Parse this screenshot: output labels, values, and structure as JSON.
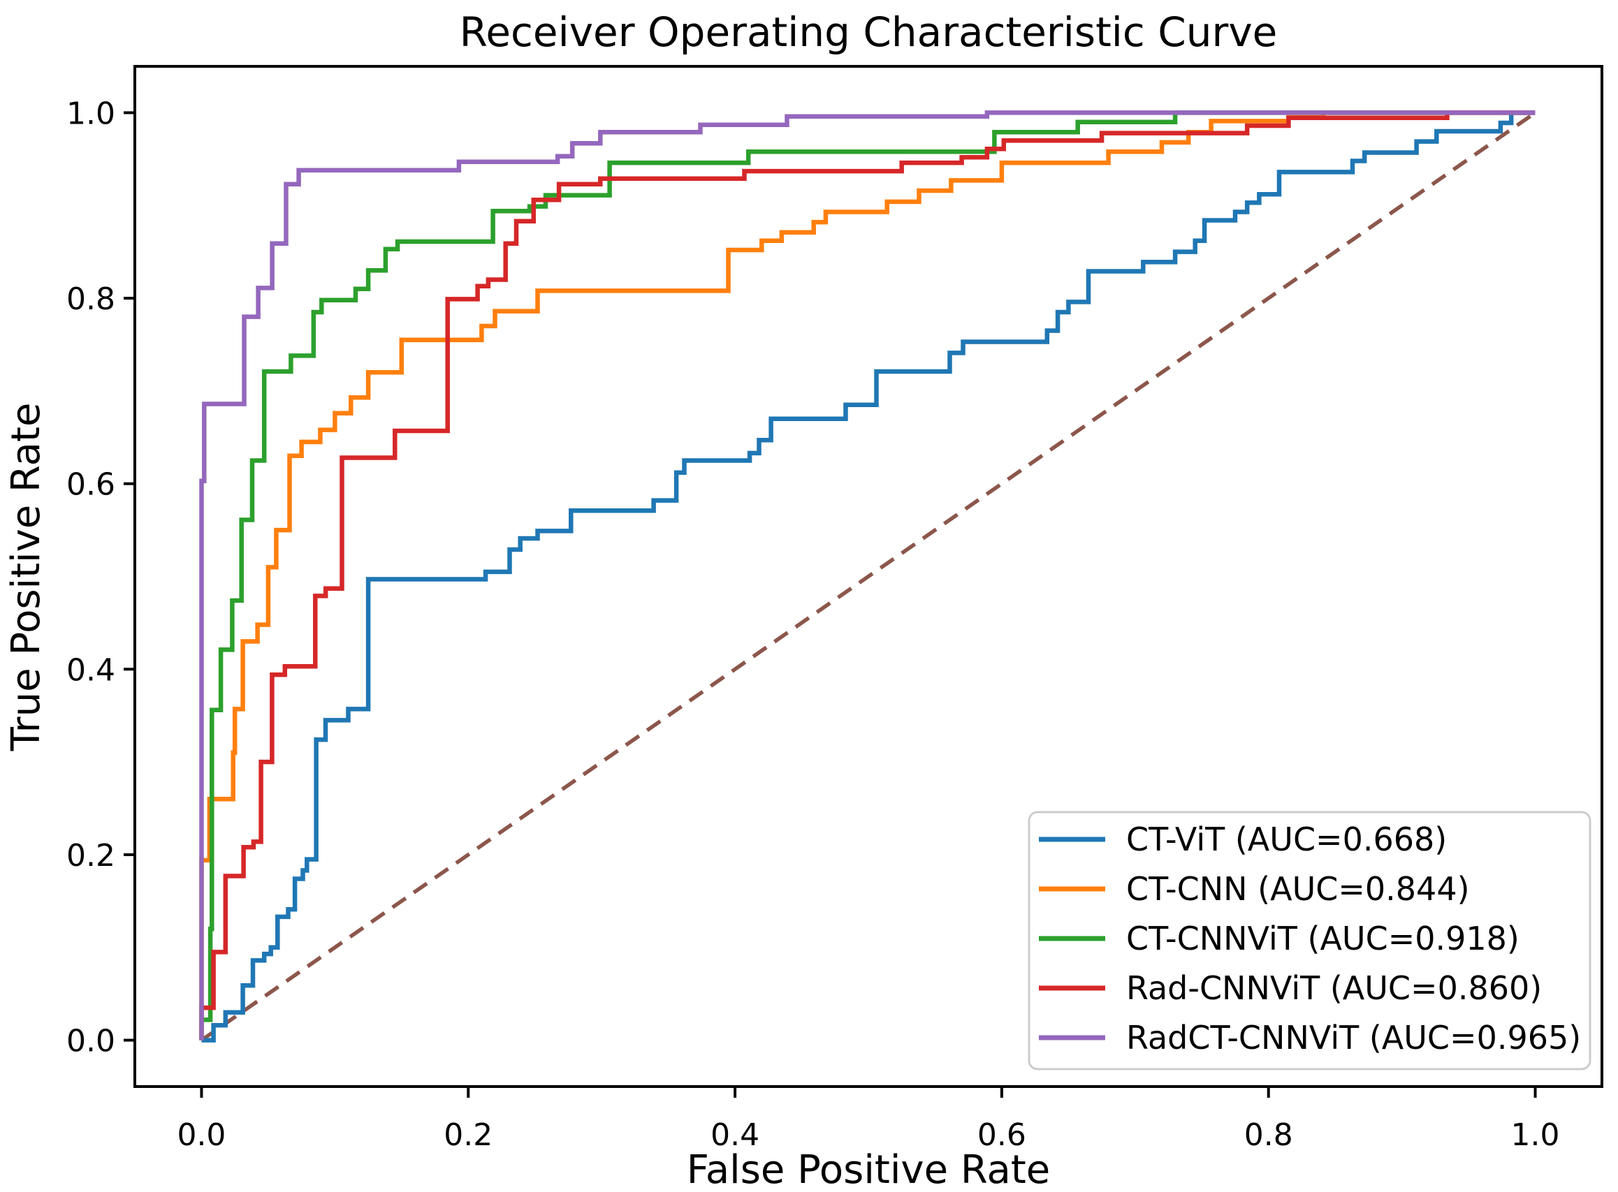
{
  "chart_data": {
    "type": "line",
    "subtype": "roc-step-curves",
    "title": "Receiver Operating Characteristic Curve",
    "xlabel": "False Positive Rate",
    "ylabel": "True Positive Rate",
    "x_tick_labels": [
      "0.0",
      "0.2",
      "0.4",
      "0.6",
      "0.8",
      "1.0"
    ],
    "y_tick_labels": [
      "0.0",
      "0.2",
      "0.4",
      "0.6",
      "0.8",
      "1.0"
    ],
    "x_tick_values": [
      0.0,
      0.2,
      0.4,
      0.6,
      0.8,
      1.0
    ],
    "y_tick_values": [
      0.0,
      0.2,
      0.4,
      0.6,
      0.8,
      1.0
    ],
    "xlim": [
      -0.05,
      1.05
    ],
    "ylim": [
      -0.05,
      1.05
    ],
    "grid": false,
    "legend_position": "lower right",
    "axes_color": "#000000",
    "background_color": "#ffffff",
    "diagonal_reference": {
      "name": "chance-line",
      "color": "#8c564b",
      "style": "dashed",
      "points": [
        [
          0,
          0
        ],
        [
          1,
          1
        ]
      ]
    },
    "series": [
      {
        "id": "ct-vit",
        "label": "CT-ViT (AUC=0.668)",
        "name": "CT-ViT",
        "auc": "0.668",
        "color": "#1f77b4",
        "points": [
          [
            0,
            0
          ],
          [
            0.009,
            0.016
          ],
          [
            0.018,
            0.03
          ],
          [
            0.031,
            0.059
          ],
          [
            0.0385,
            0.086
          ],
          [
            0.047,
            0.093
          ],
          [
            0.052,
            0.1
          ],
          [
            0.057,
            0.133
          ],
          [
            0.065,
            0.141
          ],
          [
            0.07,
            0.174
          ],
          [
            0.076,
            0.183
          ],
          [
            0.079,
            0.195
          ],
          [
            0.086,
            0.324
          ],
          [
            0.093,
            0.345
          ],
          [
            0.11,
            0.357
          ],
          [
            0.125,
            0.497
          ],
          [
            0.213,
            0.505
          ],
          [
            0.231,
            0.529
          ],
          [
            0.239,
            0.541
          ],
          [
            0.252,
            0.549
          ],
          [
            0.277,
            0.571
          ],
          [
            0.339,
            0.582
          ],
          [
            0.356,
            0.612
          ],
          [
            0.362,
            0.625
          ],
          [
            0.411,
            0.633
          ],
          [
            0.418,
            0.647
          ],
          [
            0.427,
            0.67
          ],
          [
            0.483,
            0.685
          ],
          [
            0.506,
            0.721
          ],
          [
            0.561,
            0.741
          ],
          [
            0.571,
            0.753
          ],
          [
            0.634,
            0.765
          ],
          [
            0.642,
            0.785
          ],
          [
            0.65,
            0.796
          ],
          [
            0.665,
            0.829
          ],
          [
            0.706,
            0.839
          ],
          [
            0.73,
            0.85
          ],
          [
            0.745,
            0.862
          ],
          [
            0.752,
            0.884
          ],
          [
            0.775,
            0.893
          ],
          [
            0.784,
            0.903
          ],
          [
            0.793,
            0.912
          ],
          [
            0.808,
            0.936
          ],
          [
            0.863,
            0.948
          ],
          [
            0.872,
            0.957
          ],
          [
            0.911,
            0.969
          ],
          [
            0.926,
            0.98
          ],
          [
            0.974,
            0.989
          ],
          [
            0.982,
            1
          ],
          [
            1,
            1
          ]
        ]
      },
      {
        "id": "ct-cnn",
        "label": "CT-CNN (AUC=0.844)",
        "name": "CT-CNN",
        "auc": "0.844",
        "color": "#ff7f0e",
        "points": [
          [
            0,
            0
          ],
          [
            0,
            0.194
          ],
          [
            0.006,
            0.26
          ],
          [
            0.0237,
            0.31
          ],
          [
            0.025,
            0.357
          ],
          [
            0.031,
            0.43
          ],
          [
            0.042,
            0.448
          ],
          [
            0.05,
            0.51
          ],
          [
            0.056,
            0.55
          ],
          [
            0.066,
            0.63
          ],
          [
            0.075,
            0.645
          ],
          [
            0.089,
            0.658
          ],
          [
            0.1,
            0.676
          ],
          [
            0.112,
            0.693
          ],
          [
            0.125,
            0.72
          ],
          [
            0.15,
            0.755
          ],
          [
            0.21,
            0.77
          ],
          [
            0.22,
            0.786
          ],
          [
            0.252,
            0.808
          ],
          [
            0.395,
            0.852
          ],
          [
            0.42,
            0.862
          ],
          [
            0.435,
            0.871
          ],
          [
            0.459,
            0.882
          ],
          [
            0.468,
            0.893
          ],
          [
            0.514,
            0.904
          ],
          [
            0.538,
            0.916
          ],
          [
            0.562,
            0.927
          ],
          [
            0.6,
            0.946
          ],
          [
            0.68,
            0.958
          ],
          [
            0.72,
            0.968
          ],
          [
            0.74,
            0.979
          ],
          [
            0.757,
            0.991
          ],
          [
            0.815,
            0.995
          ],
          [
            0.841,
            1
          ],
          [
            1,
            1
          ]
        ]
      },
      {
        "id": "ct-cnnvit",
        "label": "CT-CNNViT (AUC=0.918)",
        "name": "CT-CNNViT",
        "auc": "0.918",
        "color": "#2ca02c",
        "points": [
          [
            0,
            0
          ],
          [
            0,
            0.022
          ],
          [
            0.0066,
            0.12
          ],
          [
            0.0078,
            0.356
          ],
          [
            0.0145,
            0.421
          ],
          [
            0.023,
            0.474
          ],
          [
            0.03,
            0.561
          ],
          [
            0.038,
            0.625
          ],
          [
            0.047,
            0.721
          ],
          [
            0.067,
            0.738
          ],
          [
            0.084,
            0.785
          ],
          [
            0.09,
            0.798
          ],
          [
            0.1155,
            0.81
          ],
          [
            0.125,
            0.83
          ],
          [
            0.138,
            0.853
          ],
          [
            0.147,
            0.861
          ],
          [
            0.2185,
            0.894
          ],
          [
            0.246,
            0.899
          ],
          [
            0.258,
            0.911
          ],
          [
            0.306,
            0.946
          ],
          [
            0.41,
            0.958
          ],
          [
            0.5945,
            0.979
          ],
          [
            0.657,
            0.99
          ],
          [
            0.73,
            1
          ],
          [
            1,
            1
          ]
        ]
      },
      {
        "id": "rad-cnnvit",
        "label": "Rad-CNNViT (AUC=0.860)",
        "name": "Rad-CNNViT",
        "auc": "0.860",
        "color": "#d62728",
        "points": [
          [
            0,
            0
          ],
          [
            0,
            0.035
          ],
          [
            0.009,
            0.095
          ],
          [
            0.018,
            0.177
          ],
          [
            0.0315,
            0.208
          ],
          [
            0.039,
            0.214
          ],
          [
            0.0446,
            0.3
          ],
          [
            0.0529,
            0.394
          ],
          [
            0.0625,
            0.403
          ],
          [
            0.0853,
            0.479
          ],
          [
            0.0931,
            0.487
          ],
          [
            0.1053,
            0.628
          ],
          [
            0.145,
            0.657
          ],
          [
            0.1845,
            0.799
          ],
          [
            0.207,
            0.813
          ],
          [
            0.215,
            0.82
          ],
          [
            0.228,
            0.859
          ],
          [
            0.236,
            0.883
          ],
          [
            0.249,
            0.906
          ],
          [
            0.268,
            0.923
          ],
          [
            0.299,
            0.929
          ],
          [
            0.407,
            0.937
          ],
          [
            0.525,
            0.946
          ],
          [
            0.57,
            0.952
          ],
          [
            0.589,
            0.961
          ],
          [
            0.6015,
            0.97
          ],
          [
            0.675,
            0.978
          ],
          [
            0.784,
            0.986
          ],
          [
            0.815,
            0.9945
          ],
          [
            0.934,
            1
          ],
          [
            1,
            1
          ]
        ]
      },
      {
        "id": "radct-cnnvit",
        "label": "RadCT-CNNViT (AUC=0.965)",
        "name": "RadCT-CNNViT",
        "auc": "0.965",
        "color": "#9467bd",
        "points": [
          [
            0,
            0
          ],
          [
            0,
            0.603
          ],
          [
            0.002,
            0.686
          ],
          [
            0.032,
            0.78
          ],
          [
            0.0425,
            0.811
          ],
          [
            0.053,
            0.859
          ],
          [
            0.0634,
            0.923
          ],
          [
            0.0729,
            0.938
          ],
          [
            0.193,
            0.947
          ],
          [
            0.267,
            0.953
          ],
          [
            0.278,
            0.967
          ],
          [
            0.299,
            0.979
          ],
          [
            0.374,
            0.987
          ],
          [
            0.439,
            0.996
          ],
          [
            0.589,
            1
          ],
          [
            1,
            1
          ]
        ]
      }
    ]
  }
}
